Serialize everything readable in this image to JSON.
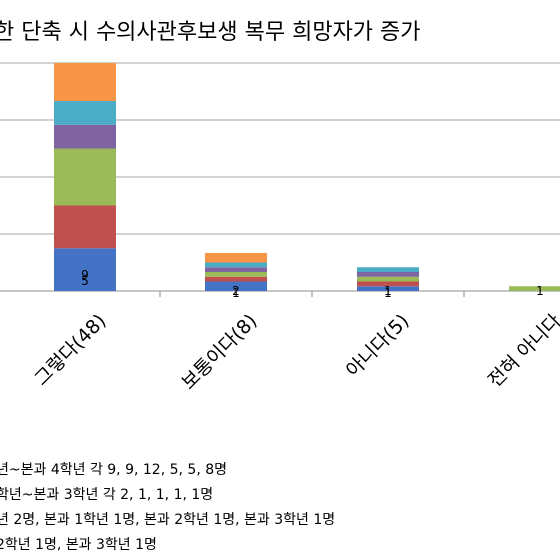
{
  "chart_data": {
    "type": "bar",
    "title": "한 단축 시 수의사관후보생 복무 희망자가 증가",
    "xlabel": "",
    "ylabel": "",
    "categories": [
      "그렇다(48)",
      "보통이다(8)",
      "아니다(5)",
      "전혀 아니다"
    ],
    "series": [
      {
        "color": "#4472C4",
        "values": [
          9,
          2,
          1,
          0
        ]
      },
      {
        "color": "#C0504D",
        "values": [
          9,
          1,
          1,
          0
        ]
      },
      {
        "color": "#9BBB59",
        "values": [
          12,
          1,
          1,
          1
        ]
      },
      {
        "color": "#8064A2",
        "values": [
          5,
          1,
          1,
          0
        ]
      },
      {
        "color": "#4BACC6",
        "values": [
          5,
          1,
          1,
          0
        ]
      },
      {
        "color": "#F79646",
        "values": [
          8,
          2,
          0,
          0
        ]
      }
    ],
    "value_labels": [
      {
        "category": 0,
        "text": "5"
      },
      {
        "category": 0,
        "text": "9"
      },
      {
        "category": 1,
        "text": "2"
      },
      {
        "category": 1,
        "text": "1"
      },
      {
        "category": 2,
        "text": "1"
      },
      {
        "category": 2,
        "text": "1"
      },
      {
        "category": 3,
        "text": "1"
      }
    ],
    "ylim": [
      0,
      48
    ],
    "grid": true,
    "legend": "none"
  },
  "notes": [
    "년~본과 4학년 각 9, 9, 12, 5, 5, 8명",
    "학년~본과 3학년 각 2, 1, 1, 1, 1명",
    "년 2명, 본과 1학년 1명, 본과 2학년 1명, 본과 3학년 1명",
    "2학년 1명, 본과 3학년 1명"
  ]
}
